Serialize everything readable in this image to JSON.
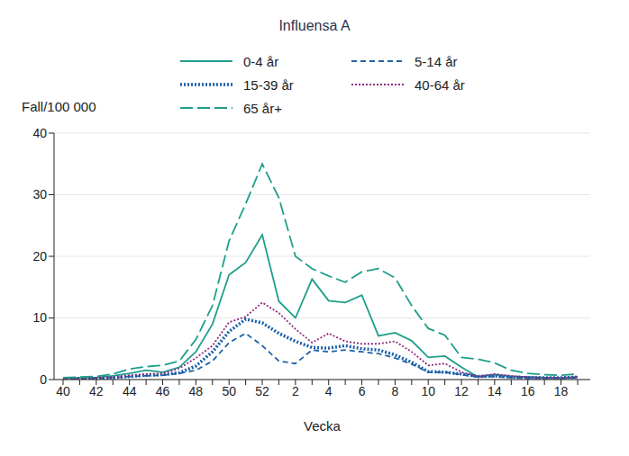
{
  "chart_data": {
    "type": "line",
    "title": "Influensa A",
    "x_label": "Vecka",
    "y_label": "Fall/100 000",
    "categories": [
      "40",
      null,
      "42",
      null,
      "44",
      null,
      "46",
      null,
      "48",
      null,
      "50",
      null,
      "52",
      null,
      "2",
      null,
      "4",
      null,
      "6",
      null,
      "8",
      null,
      "10",
      null,
      "12",
      null,
      "14",
      null,
      "16",
      null,
      "18",
      null
    ],
    "ylim": [
      0,
      40
    ],
    "yticks": [
      0,
      10,
      20,
      30,
      40
    ],
    "grid": true,
    "legend": "top",
    "series": [
      {
        "name": "0-4 år",
        "color": "#1f9e8c",
        "line_style": "solid",
        "values": [
          0.2,
          0.3,
          0.3,
          0.6,
          1.0,
          1.5,
          1.2,
          2.0,
          4.5,
          9,
          17,
          19,
          23.5,
          12.7,
          10,
          16.3,
          12.8,
          12.5,
          13.7,
          7.1,
          7.6,
          6.3,
          3.6,
          3.8,
          2.0,
          0.4,
          0.8,
          0.5,
          0.4,
          0.3,
          0.2,
          0.4
        ]
      },
      {
        "name": "5-14 år",
        "color": "#1f63a8",
        "line_style": "dashed",
        "values": [
          0.1,
          0.1,
          0.2,
          0.3,
          0.5,
          0.6,
          0.7,
          1.0,
          1.5,
          3,
          6,
          7.5,
          5.5,
          3,
          2.6,
          4.8,
          4.5,
          4.8,
          4.5,
          4.2,
          3.5,
          2.5,
          1.2,
          1.2,
          0.8,
          0.4,
          0.5,
          0.3,
          0.2,
          0.2,
          0.2,
          0.3
        ]
      },
      {
        "name": "15-39 år",
        "color": "#1a5fa8",
        "line_style": "bold_dotted",
        "values": [
          0.1,
          0.1,
          0.2,
          0.3,
          0.5,
          0.7,
          0.8,
          1.1,
          2.2,
          4.5,
          7.8,
          9.8,
          9.2,
          7.5,
          6.2,
          5.2,
          5.1,
          5.5,
          5.0,
          4.8,
          4.0,
          2.8,
          1.3,
          1.2,
          0.9,
          0.5,
          0.6,
          0.4,
          0.3,
          0.3,
          0.3,
          0.4
        ]
      },
      {
        "name": "40-64 år",
        "color": "#8e2a82",
        "line_style": "dotted",
        "values": [
          0.1,
          0.2,
          0.3,
          0.4,
          0.7,
          0.9,
          1.0,
          1.8,
          3.5,
          5.5,
          9.3,
          10.2,
          12.5,
          10.8,
          8.2,
          6.0,
          7.5,
          6.2,
          5.8,
          5.8,
          6.2,
          4.5,
          2.3,
          2.6,
          1.2,
          0.5,
          0.9,
          0.6,
          0.4,
          0.3,
          0.3,
          0.4
        ]
      },
      {
        "name": "65 år+",
        "color": "#1f9e8c",
        "line_style": "longdash",
        "values": [
          0.3,
          0.4,
          0.5,
          0.9,
          1.7,
          2.1,
          2.3,
          3.0,
          6.5,
          12,
          22.5,
          28.5,
          35,
          29.5,
          20,
          18,
          16.8,
          15.8,
          17.5,
          18,
          16.5,
          12,
          8.3,
          7.2,
          3.6,
          3.3,
          2.7,
          1.5,
          1.0,
          0.8,
          0.7,
          0.9
        ]
      }
    ]
  }
}
